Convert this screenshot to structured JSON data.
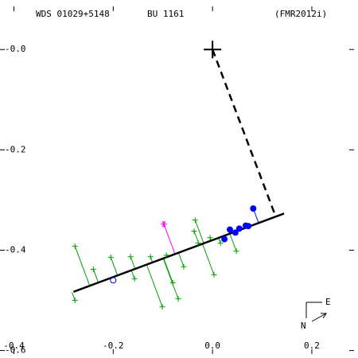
{
  "chart_data": {
    "type": "scatter",
    "title": "WDS 01029+5148",
    "subtitle": "BU 1161",
    "reference": "(FMR2012i)",
    "compass": {
      "east": "E",
      "north": "N"
    },
    "xlim": [
      -0.42,
      0.285
    ],
    "ylim": [
      -0.607,
      0.086
    ],
    "xticks": [
      -0.4,
      -0.2,
      {
        "value": 0,
        "label": "0.0"
      },
      0.2
    ],
    "yticks": [
      {
        "value": 0,
        "label": "-0.0"
      },
      -0.2,
      -0.4,
      -0.6
    ],
    "lines": [
      {
        "color": "#000000",
        "dash": false,
        "x": [
          -0.28,
          0.144
        ],
        "y": [
          -0.483,
          -0.327
        ]
      },
      {
        "color": "#000000",
        "dash": true,
        "x": [
          0,
          0.125
        ],
        "y": [
          0,
          -0.327
        ]
      }
    ],
    "series": [
      {
        "color": "#000000",
        "marker": "cross",
        "x": [
          0
        ],
        "y": [
          0
        ]
      },
      {
        "color": "#00a000",
        "marker": "plus",
        "residuals": true,
        "x": [
          -0.277,
          -0.277,
          -0.24,
          -0.205,
          -0.165,
          -0.157,
          -0.125,
          -0.101,
          -0.093,
          -0.08,
          -0.069,
          -0.058,
          -0.037,
          -0.035,
          -0.029,
          -0.005,
          0.003,
          0.016,
          0.048
        ],
        "y": [
          -0.392,
          -0.5,
          -0.438,
          -0.414,
          -0.413,
          -0.457,
          -0.413,
          -0.513,
          -0.41,
          -0.465,
          -0.497,
          -0.433,
          -0.362,
          -0.34,
          -0.386,
          -0.375,
          -0.449,
          -0.386,
          -0.402
        ]
      },
      {
        "color": "#ff00ff",
        "marker": "star",
        "residuals": true,
        "x": [
          -0.098
        ],
        "y": [
          -0.348
        ]
      },
      {
        "color": "#0000ff",
        "marker": "circle",
        "x": [
          -0.2
        ],
        "y": [
          -0.46
        ]
      },
      {
        "color": "#0000ff",
        "marker": "dot",
        "residuals": true,
        "x": [
          0.024,
          0.035,
          0.046,
          0.054,
          0.067,
          0.072,
          0.082
        ],
        "y": [
          -0.378,
          -0.359,
          -0.365,
          -0.357,
          -0.351,
          -0.352,
          -0.317
        ]
      }
    ]
  }
}
